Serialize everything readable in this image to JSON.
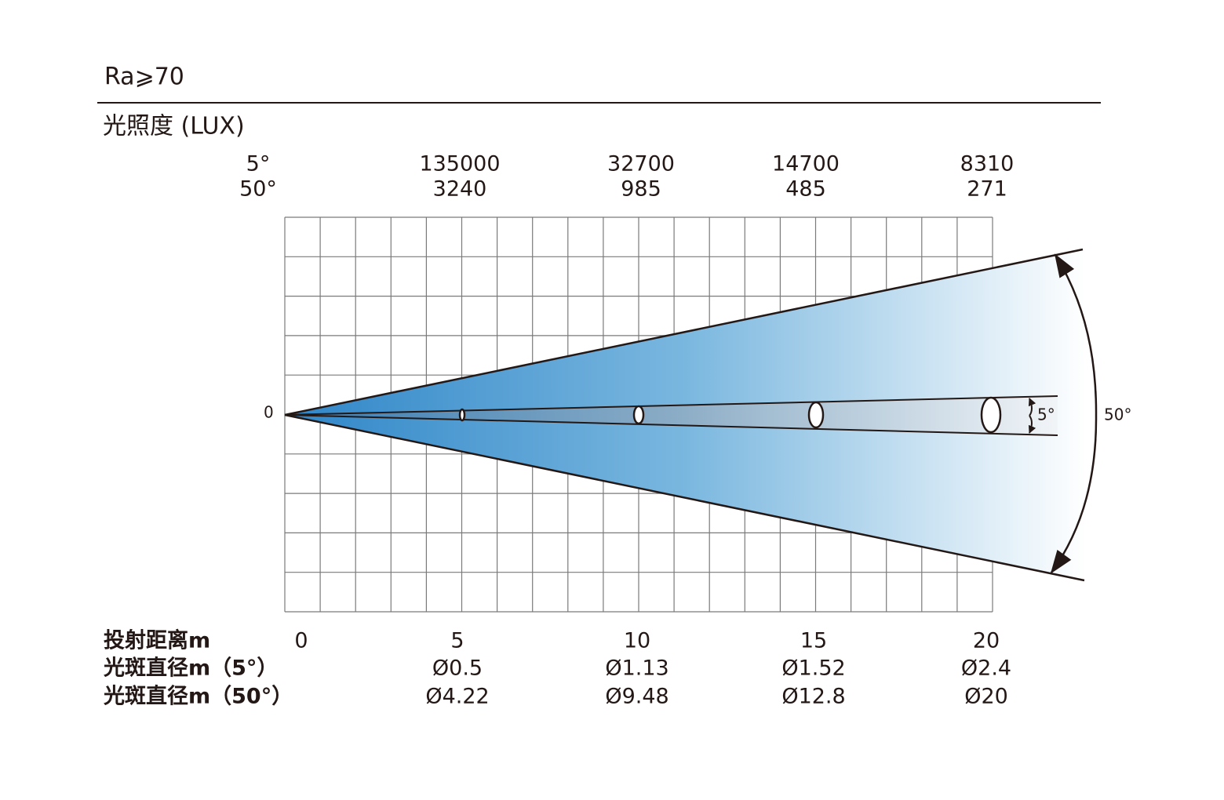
{
  "header": {
    "title": "Ra⩾70",
    "subtitle": "光照度 (LUX)"
  },
  "angles": {
    "narrow": "5°",
    "wide": "50°"
  },
  "lux": [
    {
      "narrow": 135000,
      "wide": 3240
    },
    {
      "narrow": 32700,
      "wide": 985
    },
    {
      "narrow": 14700,
      "wide": 485
    },
    {
      "narrow": 8310,
      "wide": 271
    }
  ],
  "diagram": {
    "origin_label": "0",
    "narrow_angle_label": "5°",
    "wide_angle_label": "50°"
  },
  "table": {
    "distance": {
      "label": "投射距离m",
      "values": [
        0,
        5,
        10,
        15,
        20
      ]
    },
    "diameter_narrow": {
      "label": "光斑直径m（5°）",
      "values": [
        "Ø0.5",
        "Ø1.13",
        "Ø1.52",
        "Ø2.4"
      ]
    },
    "diameter_wide": {
      "label": "光斑直径m（50°）",
      "values": [
        "Ø4.22",
        "Ø9.48",
        "Ø12.8",
        "Ø20"
      ]
    }
  }
}
